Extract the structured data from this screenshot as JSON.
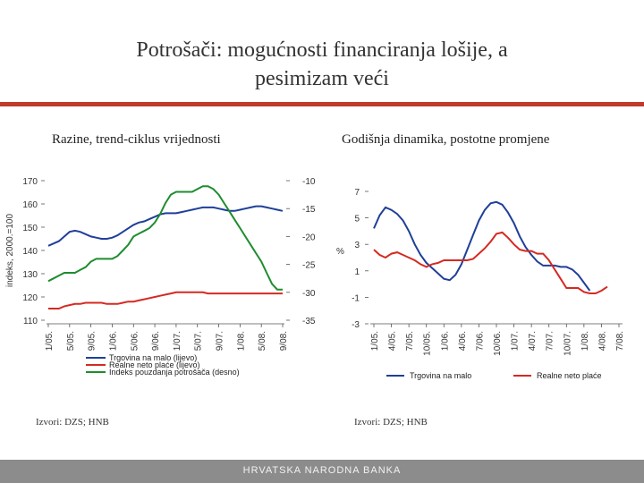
{
  "slide": {
    "title_line1": "Potrošači: mogućnosti financiranja lošije, a",
    "title_line2": "pesimizam veći",
    "left_subtitle": "Razine, trend-ciklus vrijednosti",
    "right_subtitle": "Godišnja dinamika, postotne promjene",
    "left_source": "Izvori: DZS; HNB",
    "right_source": "Izvori: DZS; HNB",
    "footer": "HRVATSKA NARODNA BANKA"
  },
  "chart_data": [
    {
      "type": "line",
      "ylabel": "indeks, 2000.=100",
      "x": [
        "1/05",
        "2",
        "3",
        "4",
        "5/05",
        "6",
        "7",
        "8",
        "9/05",
        "10",
        "11",
        "12",
        "1/06",
        "2",
        "3",
        "4",
        "5/06",
        "6",
        "7",
        "8",
        "9/06",
        "10",
        "11",
        "12",
        "1/07",
        "2",
        "3",
        "4",
        "5/07",
        "6",
        "7",
        "8",
        "9/07",
        "10",
        "11",
        "12",
        "1/08",
        "2",
        "3",
        "4",
        "5/08",
        "6",
        "7",
        "8",
        "9/08"
      ],
      "xticks": [
        "1/05.",
        "5/05.",
        "9/05.",
        "1/06.",
        "5/06.",
        "9/06.",
        "1/07.",
        "5/07.",
        "9/07.",
        "1/08.",
        "5/08.",
        "9/08."
      ],
      "ylim_left": [
        110,
        170
      ],
      "yticks_left": [
        "110",
        "120",
        "130",
        "140",
        "150",
        "160",
        "170"
      ],
      "ylim_right": [
        -35,
        -10
      ],
      "yticks_right": [
        "-35",
        "-30",
        "-25",
        "-20",
        "-15",
        "-10"
      ],
      "series": [
        {
          "name": "Trgovina na malo (lijevo)",
          "axis": "left",
          "color": "#1f3f99",
          "values": [
            142,
            143,
            144,
            146,
            148,
            148.5,
            148,
            147,
            146,
            145.5,
            145,
            145,
            145.5,
            146.5,
            148,
            149.5,
            151,
            152,
            152.5,
            153.5,
            154.5,
            155.5,
            156,
            156,
            156,
            156.5,
            157,
            157.5,
            158,
            158.5,
            158.5,
            158.5,
            158,
            157.5,
            157,
            157,
            157.5,
            158,
            158.5,
            159,
            159,
            158.5,
            158,
            157.5,
            157
          ]
        },
        {
          "name": "Realne neto plaće (lijevo)",
          "axis": "left",
          "color": "#d42a22",
          "values": [
            115,
            115,
            115,
            116,
            116.5,
            117,
            117,
            117.5,
            117.5,
            117.5,
            117.5,
            117,
            117,
            117,
            117.5,
            118,
            118,
            118.5,
            119,
            119.5,
            120,
            120.5,
            121,
            121.5,
            122,
            122,
            122,
            122,
            122,
            122,
            121.5,
            121.5,
            121.5,
            121.5,
            121.5,
            121.5,
            121.5,
            121.5,
            121.5,
            121.5,
            121.5,
            121.5,
            121.5,
            121.5,
            121.5
          ]
        },
        {
          "name": "Indeks pouzdanja potrošača (desno)",
          "axis": "right",
          "color": "#1e8c2e",
          "values": [
            -28,
            -27.5,
            -27,
            -26.5,
            -26.5,
            -26.5,
            -26,
            -25.5,
            -24.5,
            -24,
            -24,
            -24,
            -24,
            -23.5,
            -22.5,
            -21.5,
            -20,
            -19.5,
            -19,
            -18.5,
            -17.5,
            -16,
            -14,
            -12.5,
            -12,
            -12,
            -12,
            -12,
            -11.5,
            -11,
            -11,
            -11.5,
            -12.5,
            -14,
            -15.5,
            -17,
            -18.5,
            -20,
            -21.5,
            -23,
            -24.5,
            -26.5,
            -28.5,
            -29.5,
            -29.5
          ]
        }
      ]
    },
    {
      "type": "line",
      "ylabel": "%",
      "xticks": [
        "1/05.",
        "4/05.",
        "7/05.",
        "10/05.",
        "1/06.",
        "4/06.",
        "7/06.",
        "10/06.",
        "1/07.",
        "4/07.",
        "7/07.",
        "10/07.",
        "1/08.",
        "4/08.",
        "7/08."
      ],
      "ylim": [
        -3,
        7
      ],
      "yticks": [
        "-3",
        "-1",
        "1",
        "3",
        "5",
        "7"
      ],
      "series": [
        {
          "name": "Trgovina na malo",
          "color": "#1f3f99",
          "values": [
            4.2,
            5.2,
            5.8,
            5.6,
            5.3,
            4.8,
            4,
            3,
            2.2,
            1.6,
            1.2,
            0.8,
            0.4,
            0.3,
            0.7,
            1.5,
            2.6,
            3.7,
            4.8,
            5.6,
            6.1,
            6.2,
            6,
            5.4,
            4.6,
            3.6,
            2.8,
            2.2,
            1.7,
            1.4,
            1.4,
            1.4,
            1.3,
            1.3,
            1.1,
            0.7,
            0.1,
            -0.5
          ]
        },
        {
          "name": "Realne neto plaće",
          "color": "#d42a22",
          "values": [
            2.6,
            2.2,
            2,
            2.3,
            2.4,
            2.2,
            2,
            1.8,
            1.5,
            1.3,
            1.5,
            1.6,
            1.8,
            1.8,
            1.8,
            1.8,
            1.8,
            1.9,
            2.3,
            2.7,
            3.2,
            3.8,
            3.9,
            3.5,
            3,
            2.6,
            2.5,
            2.5,
            2.3,
            2.3,
            1.8,
            1.1,
            0.4,
            -0.3,
            -0.3,
            -0.3,
            -0.6,
            -0.7,
            -0.7,
            -0.5,
            -0.2
          ]
        }
      ]
    }
  ]
}
